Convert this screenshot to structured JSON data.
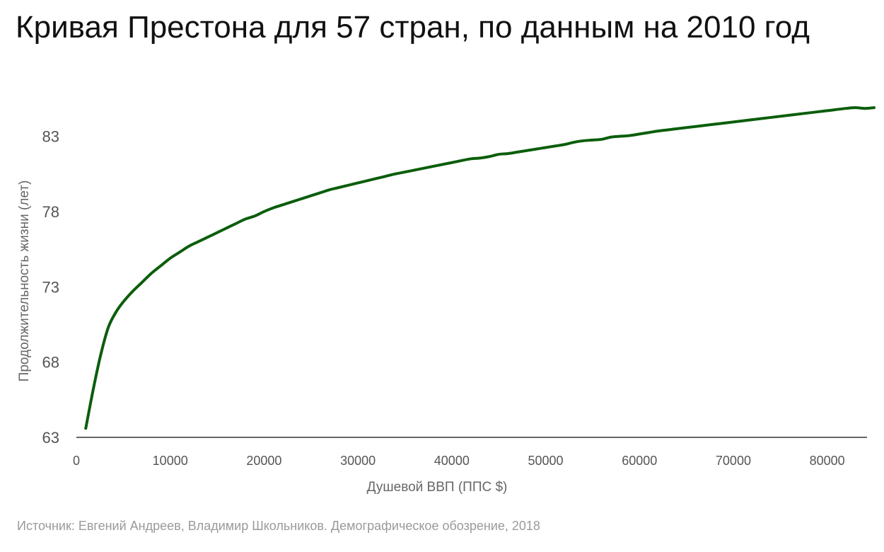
{
  "title": "Кривая Престона для 57 стран, по данным на 2010 год",
  "source": "Источник: Евгений Андреев, Владимир Школьников. Демографическое обозрение, 2018",
  "colors": {
    "line": "#0b5e0b",
    "axis": "#333333",
    "text": "#555555",
    "source": "#9a9a9a"
  },
  "chart_data": {
    "type": "line",
    "xlabel": "Душевой ВВП (ППС $)",
    "ylabel": "Продолжительность жизни (лет)",
    "xlim": [
      0,
      85000
    ],
    "ylim": [
      63,
      85
    ],
    "x_ticks": [
      0,
      10000,
      20000,
      30000,
      40000,
      50000,
      60000,
      70000,
      80000
    ],
    "x_tick_labels": [
      "0",
      "10000",
      "20000",
      "30000",
      "40000",
      "50000",
      "60000",
      "70000",
      "80000"
    ],
    "y_ticks": [
      63,
      68,
      73,
      78,
      83
    ],
    "y_tick_labels": [
      "63",
      "68",
      "73",
      "78",
      "83"
    ],
    "grid": false,
    "legend": "none",
    "series": [
      {
        "x": [
          1000,
          1800,
          2600,
          3400,
          4200,
          5000,
          6000,
          7000,
          8000,
          9000,
          10000,
          11000,
          12000,
          13000,
          14000,
          15000,
          16000,
          17000,
          18000,
          19000,
          20000,
          21000,
          22000,
          23000,
          24000,
          25000,
          26000,
          27000,
          28000,
          29000,
          30000,
          31000,
          32000,
          33000,
          34000,
          36000,
          38000,
          40000,
          42000,
          43000,
          44000,
          45000,
          46000,
          47000,
          48000,
          49000,
          50000,
          51000,
          52000,
          53000,
          54000,
          55000,
          56000,
          57000,
          58000,
          59000,
          60000,
          61000,
          62000,
          64000,
          66000,
          68000,
          70000,
          72000,
          74000,
          76000,
          78000,
          80000,
          82000,
          83000,
          84000,
          85000
        ],
        "y": [
          63.6,
          66.2,
          68.5,
          70.3,
          71.3,
          72.0,
          72.7,
          73.3,
          73.9,
          74.4,
          74.9,
          75.3,
          75.7,
          76.0,
          76.3,
          76.6,
          76.9,
          77.2,
          77.5,
          77.7,
          78.0,
          78.25,
          78.45,
          78.65,
          78.85,
          79.05,
          79.25,
          79.45,
          79.6,
          79.75,
          79.9,
          80.05,
          80.2,
          80.35,
          80.5,
          80.75,
          81.0,
          81.25,
          81.5,
          81.55,
          81.65,
          81.8,
          81.85,
          81.95,
          82.05,
          82.15,
          82.25,
          82.35,
          82.45,
          82.6,
          82.7,
          82.75,
          82.8,
          82.95,
          83.0,
          83.05,
          83.15,
          83.25,
          83.35,
          83.5,
          83.65,
          83.8,
          83.95,
          84.1,
          84.25,
          84.4,
          84.55,
          84.7,
          84.85,
          84.9,
          84.85,
          84.9
        ]
      }
    ]
  }
}
